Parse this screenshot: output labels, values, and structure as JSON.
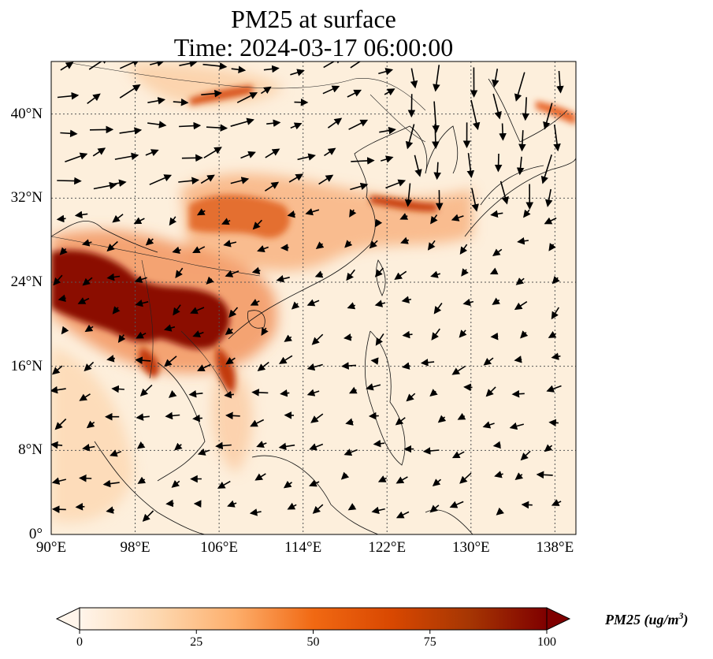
{
  "title": {
    "line1": "PM25 at surface",
    "line2": "Time: 2024-03-17 06:00:00"
  },
  "map": {
    "extent": {
      "lon": [
        90,
        140
      ],
      "lat": [
        0,
        45
      ]
    },
    "gridlines": "dotted",
    "x_ticks": [
      {
        "lon": 90,
        "label": "90°E"
      },
      {
        "lon": 98,
        "label": "98°E"
      },
      {
        "lon": 106,
        "label": "106°E"
      },
      {
        "lon": 114,
        "label": "114°E"
      },
      {
        "lon": 122,
        "label": "122°E"
      },
      {
        "lon": 130,
        "label": "130°E"
      },
      {
        "lon": 138,
        "label": "138°E"
      }
    ],
    "y_ticks": [
      {
        "lat": 0,
        "label": "0°"
      },
      {
        "lat": 8,
        "label": "8°N"
      },
      {
        "lat": 16,
        "label": "16°N"
      },
      {
        "lat": 24,
        "label": "24°N"
      },
      {
        "lat": 32,
        "label": "32°N"
      },
      {
        "lat": 40,
        "label": "40°N"
      }
    ],
    "field": "PM25 concentration shaded, wind vectors overlaid",
    "background_color": "#fdefdc"
  },
  "colorbar": {
    "label": "PM25 (ug/m",
    "label_sup": "3",
    "label_end": ")",
    "min": 0,
    "max": 100,
    "ticks": [
      {
        "value": 0,
        "label": "0"
      },
      {
        "value": 25,
        "label": "25"
      },
      {
        "value": 50,
        "label": "50"
      },
      {
        "value": 75,
        "label": "75"
      },
      {
        "value": 100,
        "label": "100"
      }
    ],
    "colors": [
      "#fff5eb",
      "#fdd8b0",
      "#fdae6b",
      "#f16913",
      "#d94801",
      "#a63603",
      "#7f0000"
    ],
    "extend": "both"
  }
}
